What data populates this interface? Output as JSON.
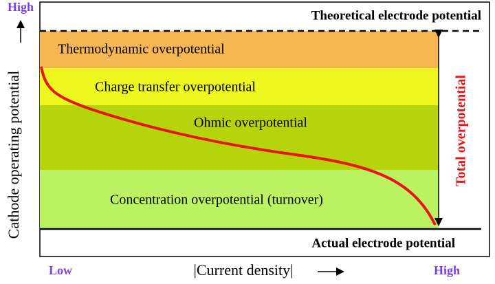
{
  "top_line": {
    "label": "Theoretical electrode potential"
  },
  "bottom_line": {
    "label": "Actual electrode potential"
  },
  "bands": [
    {
      "label": "Thermodynamic overpotential"
    },
    {
      "label": "Charge transfer overpotential"
    },
    {
      "label": "Ohmic overpotential"
    },
    {
      "label": "Concentration overpotential (turnover)"
    }
  ],
  "total": {
    "label": "Total overpotential"
  },
  "y_axis": {
    "label": "Cathode operating potential",
    "high": "High"
  },
  "x_axis": {
    "label": "|Current density|",
    "low": "Low",
    "high": "High"
  }
}
